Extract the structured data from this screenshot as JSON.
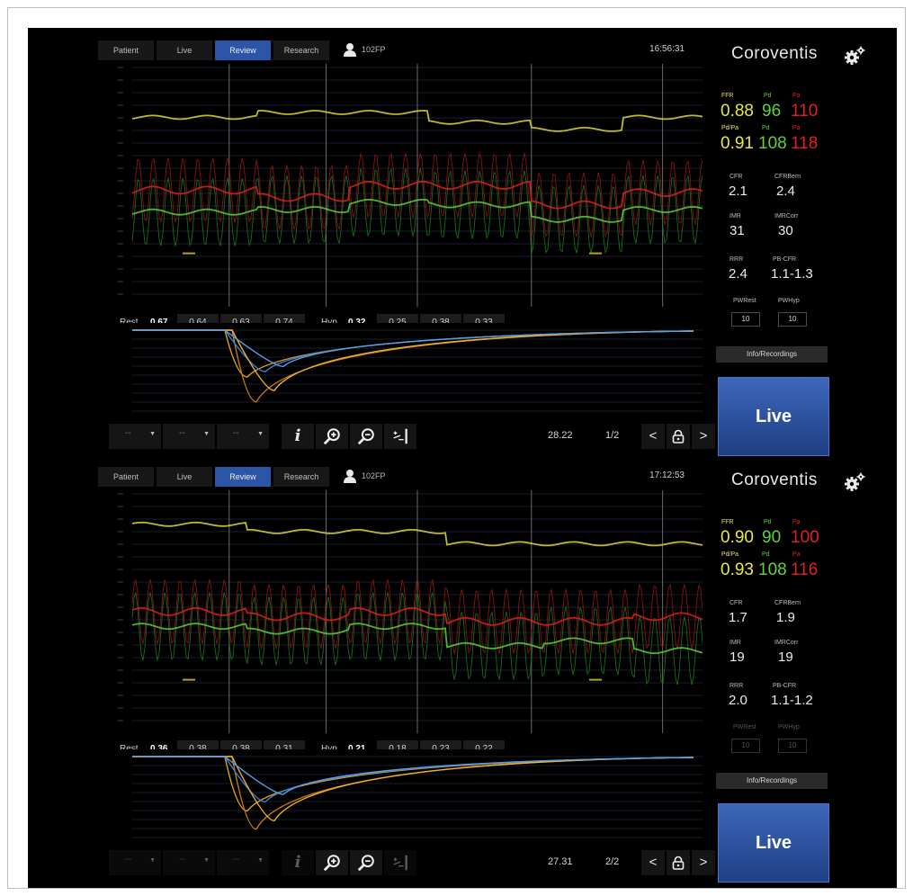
{
  "panels": [
    {
      "tabs": [
        {
          "label": "Patient"
        },
        {
          "label": "Live"
        },
        {
          "label": "Review",
          "active": true
        },
        {
          "label": "Research"
        }
      ],
      "user_id": "102FP",
      "time": "16:56:31",
      "brand": "Coroventis",
      "measurements": {
        "row1": [
          {
            "label": "FFR",
            "value": "0.88",
            "color": "#e8e84a"
          },
          {
            "label": "Pd",
            "value": "96",
            "color": "#5dd23a"
          },
          {
            "label": "Pa",
            "value": "110",
            "color": "#e02020"
          }
        ],
        "row2": [
          {
            "label": "Pd/Pa",
            "value": "0.91",
            "color": "#e8e84a"
          },
          {
            "label": "Pd",
            "value": "108",
            "color": "#5dd23a"
          },
          {
            "label": "Pa",
            "value": "118",
            "color": "#e02020"
          }
        ]
      },
      "stats": [
        {
          "label": "CFR",
          "value": "2.1"
        },
        {
          "label": "CFRBern",
          "value": "2.4"
        },
        {
          "label": "IMR",
          "value": "31"
        },
        {
          "label": "IMRCorr",
          "value": "30"
        },
        {
          "label": "RRR",
          "value": "2.4"
        },
        {
          "label": "PB-CFR",
          "value": "1.1-1.3"
        }
      ],
      "pw": [
        {
          "label": "PWRest",
          "value": "10"
        },
        {
          "label": "PWHyp",
          "value": "10"
        }
      ],
      "pw_dimmed": false,
      "rest": {
        "label": "Rest",
        "mean": "0.67",
        "values": [
          "0.64",
          "0.63",
          "0.74"
        ]
      },
      "hyp": {
        "label": "Hyp",
        "mean": "0.32",
        "values": [
          "0.25",
          "0.38",
          "0.33"
        ]
      },
      "toolbar": {
        "dropdowns": [
          "--",
          "--",
          "--"
        ],
        "value": "28.22",
        "page": "1/2",
        "dimmed": false
      },
      "info_label": "Info/Recordings",
      "live_label": "Live",
      "curve_troughs": [
        0.62,
        0.95,
        0.55,
        0.8,
        0.48
      ],
      "wave_steps": [
        {
          "yellow": 0.78,
          "red": 0.48,
          "green": 0.39,
          "t": 0
        },
        {
          "yellow": 0.8,
          "red": 0.45,
          "green": 0.4,
          "t": 0.22
        },
        {
          "yellow": 0.8,
          "red": 0.5,
          "green": 0.43,
          "t": 0.38
        },
        {
          "yellow": 0.76,
          "red": 0.5,
          "green": 0.42,
          "t": 0.52
        },
        {
          "yellow": 0.73,
          "red": 0.42,
          "green": 0.36,
          "t": 0.7
        },
        {
          "yellow": 0.78,
          "red": 0.47,
          "green": 0.4,
          "t": 0.86
        }
      ]
    },
    {
      "tabs": [
        {
          "label": "Patient"
        },
        {
          "label": "Live"
        },
        {
          "label": "Review",
          "active": true
        },
        {
          "label": "Research"
        }
      ],
      "user_id": "102FP",
      "time": "17:12:53",
      "brand": "Coroventis",
      "measurements": {
        "row1": [
          {
            "label": "FFR",
            "value": "0.90",
            "color": "#e8e84a"
          },
          {
            "label": "Pd",
            "value": "90",
            "color": "#5dd23a"
          },
          {
            "label": "Pa",
            "value": "100",
            "color": "#e02020"
          }
        ],
        "row2": [
          {
            "label": "Pd/Pa",
            "value": "0.93",
            "color": "#e8e84a"
          },
          {
            "label": "Pd",
            "value": "108",
            "color": "#5dd23a"
          },
          {
            "label": "Pa",
            "value": "116",
            "color": "#e02020"
          }
        ]
      },
      "stats": [
        {
          "label": "CFR",
          "value": "1.7"
        },
        {
          "label": "CFRBern",
          "value": "1.9"
        },
        {
          "label": "IMR",
          "value": "19"
        },
        {
          "label": "IMRCorr",
          "value": "19"
        },
        {
          "label": "RRR",
          "value": "2.0"
        },
        {
          "label": "PB-CFR",
          "value": "1.1-1.2"
        }
      ],
      "pw": [
        {
          "label": "PWRest",
          "value": "10"
        },
        {
          "label": "PWHyp",
          "value": "10"
        }
      ],
      "pw_dimmed": true,
      "rest": {
        "label": "Rest",
        "mean": "0.36",
        "values": [
          "0.38",
          "0.38",
          "0.31"
        ]
      },
      "hyp": {
        "label": "Hyp",
        "mean": "0.21",
        "values": [
          "0.18",
          "0.23",
          "0.22"
        ]
      },
      "toolbar": {
        "dropdowns": [
          "--",
          "--",
          "--"
        ],
        "value": "27.31",
        "page": "2/2",
        "dimmed": true
      },
      "info_label": "Info/Recordings",
      "live_label": "Live",
      "curve_troughs": [
        0.72,
        0.96,
        0.6,
        0.85,
        0.5
      ],
      "wave_steps": [
        {
          "yellow": 0.86,
          "red": 0.5,
          "green": 0.44,
          "t": 0
        },
        {
          "yellow": 0.83,
          "red": 0.48,
          "green": 0.42,
          "t": 0.2
        },
        {
          "yellow": 0.83,
          "red": 0.5,
          "green": 0.44,
          "t": 0.38
        },
        {
          "yellow": 0.78,
          "red": 0.46,
          "green": 0.36,
          "t": 0.55
        },
        {
          "yellow": 0.78,
          "red": 0.46,
          "green": 0.38,
          "t": 0.72
        },
        {
          "yellow": 0.78,
          "red": 0.48,
          "green": 0.34,
          "t": 0.88
        }
      ]
    }
  ]
}
